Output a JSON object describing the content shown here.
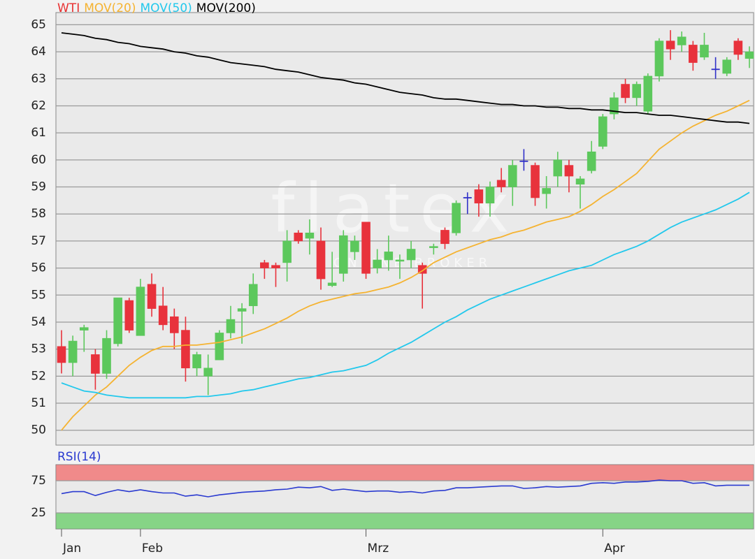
{
  "watermark": {
    "logo": "flatex",
    "tagline": "ONLINE BROKER"
  },
  "chart_data": [
    {
      "type": "candlestick",
      "categories": [
        "Jan",
        null,
        null,
        null,
        null,
        null,
        null,
        "Feb",
        null,
        null,
        null,
        null,
        null,
        null,
        null,
        null,
        null,
        null,
        null,
        null,
        null,
        null,
        null,
        null,
        null,
        null,
        null,
        "Mrz",
        null,
        null,
        null,
        null,
        null,
        null,
        null,
        null,
        null,
        null,
        null,
        null,
        null,
        null,
        null,
        null,
        null,
        null,
        null,
        null,
        "Apr",
        null,
        null,
        null,
        null,
        null,
        null,
        null,
        null,
        null,
        null,
        null,
        null,
        null
      ],
      "ylim": [
        49.45,
        65.45
      ],
      "yticks": [
        50,
        51,
        52,
        53,
        54,
        55,
        56,
        57,
        58,
        59,
        60,
        61,
        62,
        63,
        64,
        65
      ],
      "grid": true,
      "series": [
        {
          "name": "WTI",
          "color": "#e83030",
          "up_color": "#5cc85c",
          "down_color": "#e8323c",
          "doji_color": "#3030c8",
          "open": [
            53.1,
            52.5,
            53.7,
            52.8,
            52.1,
            53.2,
            54.8,
            53.5,
            55.4,
            54.6,
            54.2,
            53.7,
            52.3,
            52.0,
            52.6,
            53.6,
            54.4,
            54.6,
            56.2,
            56.1,
            56.2,
            57.3,
            57.1,
            57.0,
            55.35,
            55.8,
            56.6,
            57.7,
            56.0,
            56.3,
            56.25,
            56.3,
            56.1,
            56.75,
            57.4,
            57.3,
            58.6,
            58.9,
            58.4,
            59.25,
            59.0,
            59.95,
            59.8,
            58.75,
            59.4,
            59.8,
            59.1,
            59.6,
            60.5,
            61.7,
            62.8,
            62.3,
            61.8,
            63.1,
            64.4,
            64.25,
            64.25,
            63.8,
            63.35,
            63.2,
            64.4,
            63.75
          ],
          "high": [
            53.7,
            53.5,
            53.9,
            53.0,
            53.7,
            54.9,
            54.9,
            55.6,
            55.8,
            55.3,
            54.5,
            54.2,
            52.9,
            52.8,
            53.7,
            54.6,
            54.7,
            55.8,
            56.3,
            56.2,
            57.4,
            57.4,
            57.8,
            57.5,
            56.6,
            57.4,
            57.2,
            57.7,
            56.7,
            57.2,
            56.5,
            57.0,
            56.2,
            56.9,
            57.5,
            58.5,
            58.8,
            59.1,
            59.2,
            59.7,
            60.0,
            60.4,
            59.9,
            59.4,
            60.3,
            60.0,
            59.4,
            60.7,
            61.7,
            62.5,
            63.0,
            62.9,
            63.2,
            64.5,
            64.8,
            64.75,
            64.4,
            64.7,
            63.8,
            63.8,
            64.5,
            64.2
          ],
          "low": [
            52.1,
            52.0,
            52.9,
            51.5,
            51.9,
            53.1,
            53.6,
            53.5,
            54.2,
            53.7,
            53.0,
            51.8,
            52.0,
            51.3,
            52.6,
            53.4,
            53.2,
            54.3,
            55.6,
            55.3,
            55.5,
            56.9,
            56.5,
            55.2,
            55.3,
            55.5,
            56.3,
            55.6,
            55.8,
            55.9,
            55.6,
            56.0,
            54.5,
            56.5,
            56.7,
            57.2,
            58.0,
            57.9,
            57.9,
            58.8,
            58.3,
            59.6,
            58.3,
            58.2,
            59.0,
            58.8,
            58.2,
            59.5,
            60.4,
            61.5,
            62.1,
            62.0,
            61.7,
            62.9,
            63.7,
            64.0,
            63.3,
            63.7,
            63.0,
            63.1,
            63.7,
            63.4
          ],
          "close": [
            52.5,
            53.3,
            53.8,
            52.1,
            53.4,
            54.9,
            53.7,
            55.3,
            54.5,
            53.9,
            53.6,
            52.3,
            52.8,
            52.3,
            53.6,
            54.1,
            54.5,
            55.4,
            56.0,
            56.0,
            57.0,
            57.0,
            57.3,
            55.6,
            55.45,
            57.2,
            57.0,
            55.8,
            56.3,
            56.6,
            56.3,
            56.7,
            55.8,
            56.8,
            56.9,
            58.4,
            58.6,
            58.4,
            59.0,
            59.0,
            59.8,
            59.95,
            58.6,
            58.95,
            60.0,
            59.4,
            59.3,
            60.3,
            61.6,
            62.3,
            62.3,
            62.8,
            63.1,
            64.4,
            64.1,
            64.55,
            63.6,
            64.25,
            63.35,
            63.7,
            63.9,
            64.0
          ]
        },
        {
          "name": "MOV(20)",
          "color": "#f5b331",
          "values": [
            50.0,
            50.5,
            50.9,
            51.3,
            51.6,
            52.0,
            52.4,
            52.7,
            52.95,
            53.1,
            53.1,
            53.15,
            53.15,
            53.2,
            53.25,
            53.35,
            53.45,
            53.6,
            53.75,
            53.95,
            54.15,
            54.4,
            54.6,
            54.75,
            54.85,
            54.95,
            55.05,
            55.1,
            55.2,
            55.3,
            55.45,
            55.65,
            55.9,
            56.2,
            56.4,
            56.6,
            56.75,
            56.9,
            57.05,
            57.15,
            57.3,
            57.4,
            57.55,
            57.7,
            57.8,
            57.9,
            58.1,
            58.35,
            58.65,
            58.9,
            59.2,
            59.5,
            59.95,
            60.4,
            60.7,
            61.0,
            61.25,
            61.45,
            61.65,
            61.8,
            62.0,
            62.2
          ]
        },
        {
          "name": "MOV(50)",
          "color": "#22c8ec",
          "values": [
            51.75,
            51.6,
            51.45,
            51.4,
            51.3,
            51.25,
            51.2,
            51.2,
            51.2,
            51.2,
            51.2,
            51.2,
            51.25,
            51.25,
            51.3,
            51.35,
            51.45,
            51.5,
            51.6,
            51.7,
            51.8,
            51.9,
            51.95,
            52.05,
            52.15,
            52.2,
            52.3,
            52.4,
            52.6,
            52.85,
            53.05,
            53.25,
            53.5,
            53.75,
            54.0,
            54.2,
            54.45,
            54.65,
            54.85,
            55.0,
            55.15,
            55.3,
            55.45,
            55.6,
            55.75,
            55.9,
            56.0,
            56.1,
            56.3,
            56.5,
            56.65,
            56.8,
            57.0,
            57.25,
            57.5,
            57.7,
            57.85,
            58.0,
            58.15,
            58.35,
            58.55,
            58.8
          ]
        },
        {
          "name": "MOV(200)",
          "color": "#000000",
          "values": [
            64.7,
            64.65,
            64.6,
            64.5,
            64.45,
            64.35,
            64.3,
            64.2,
            64.15,
            64.1,
            64.0,
            63.95,
            63.85,
            63.8,
            63.7,
            63.6,
            63.55,
            63.5,
            63.45,
            63.35,
            63.3,
            63.25,
            63.15,
            63.05,
            63.0,
            62.95,
            62.85,
            62.8,
            62.7,
            62.6,
            62.5,
            62.45,
            62.4,
            62.3,
            62.25,
            62.25,
            62.2,
            62.15,
            62.1,
            62.05,
            62.05,
            62.0,
            62.0,
            61.95,
            61.95,
            61.9,
            61.9,
            61.85,
            61.85,
            61.8,
            61.75,
            61.75,
            61.7,
            61.65,
            61.65,
            61.6,
            61.55,
            61.5,
            61.45,
            61.4,
            61.4,
            61.35
          ]
        }
      ]
    },
    {
      "type": "line",
      "ylim": [
        0,
        100
      ],
      "yticks": [
        25,
        75
      ],
      "bands": [
        {
          "from": 75,
          "to": 100,
          "color": "#f08a8a"
        },
        {
          "from": 0,
          "to": 25,
          "color": "#86d486"
        }
      ],
      "series": [
        {
          "name": "RSI(14)",
          "color": "#2a3ad0",
          "values": [
            55,
            58,
            58,
            52,
            57,
            61,
            58,
            61,
            58,
            56,
            56,
            51,
            53,
            50,
            53,
            55,
            57,
            58,
            59,
            61,
            62,
            65,
            64,
            66,
            60,
            62,
            60,
            58,
            59,
            59,
            57,
            58,
            56,
            59,
            60,
            64,
            64,
            65,
            66,
            67,
            67,
            63,
            64,
            66,
            65,
            66,
            67,
            71,
            72,
            71,
            73,
            73,
            74,
            76,
            75,
            75,
            71,
            72,
            67,
            68,
            68,
            68
          ]
        }
      ]
    }
  ]
}
